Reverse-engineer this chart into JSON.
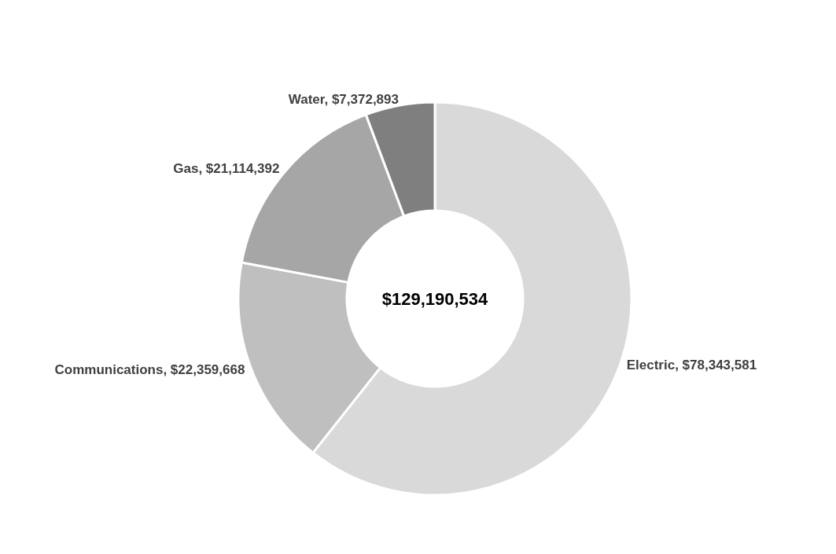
{
  "chart_data": {
    "type": "donut",
    "categories": [
      "Electric",
      "Communications",
      "Gas",
      "Water"
    ],
    "values": [
      78343581,
      22359668,
      21114392,
      7372893
    ],
    "value_labels": [
      "$78,343,581",
      "$22,359,668",
      "$21,114,392",
      "$7,372,893"
    ],
    "colors": [
      "#d9d9d9",
      "#bfbfbf",
      "#a6a6a6",
      "#7f7f7f"
    ],
    "annotations": [
      "$129,190,534"
    ],
    "legend": false
  }
}
